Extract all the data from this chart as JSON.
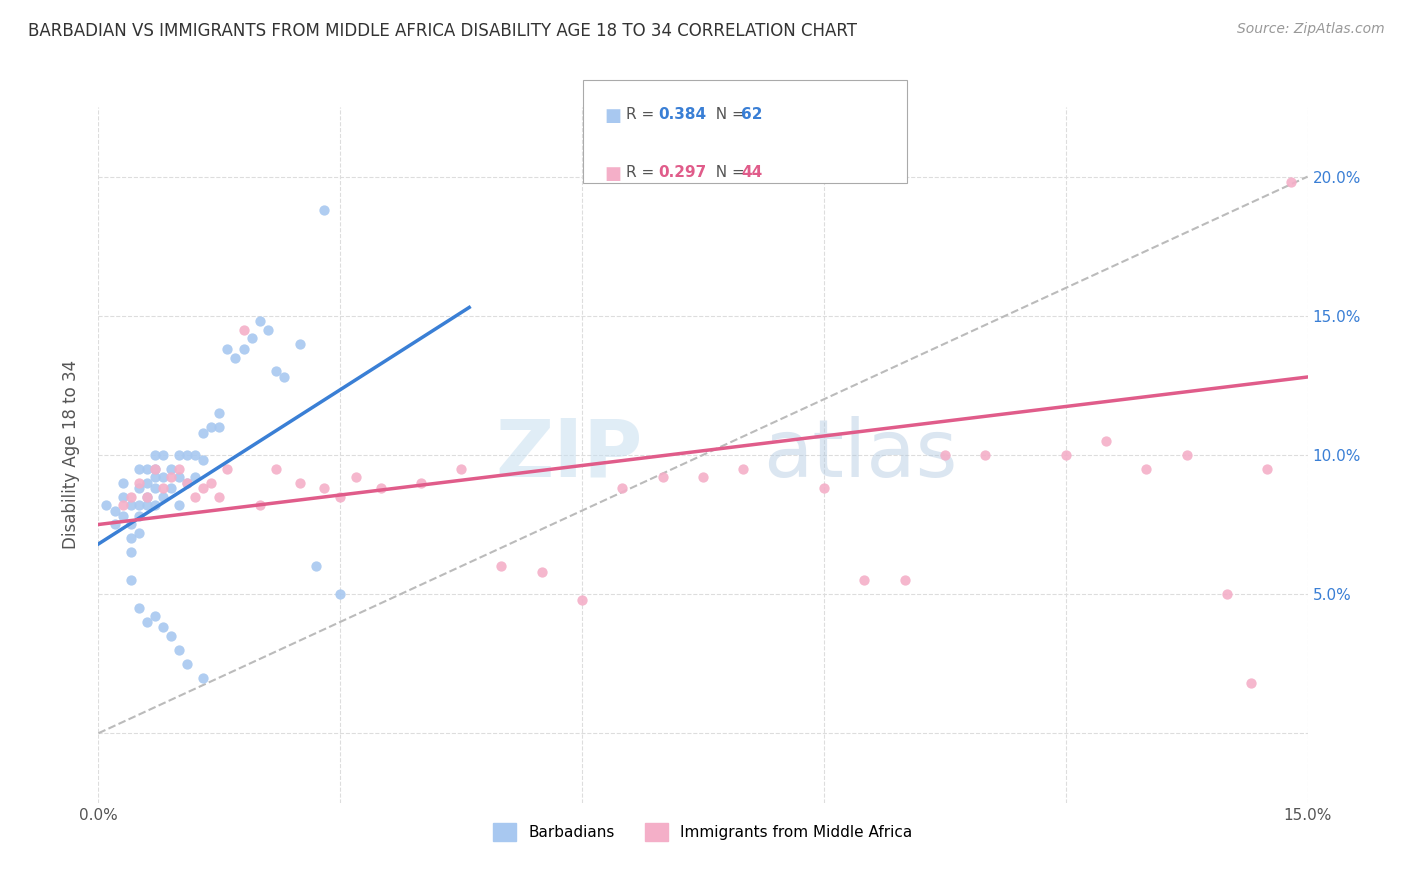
{
  "title": "BARBADIAN VS IMMIGRANTS FROM MIDDLE AFRICA DISABILITY AGE 18 TO 34 CORRELATION CHART",
  "source": "Source: ZipAtlas.com",
  "ylabel": "Disability Age 18 to 34",
  "xlim": [
    0.0,
    0.15
  ],
  "ylim": [
    -0.025,
    0.225
  ],
  "xtick_positions": [
    0.0,
    0.03,
    0.06,
    0.09,
    0.12,
    0.15
  ],
  "xticklabels": [
    "0.0%",
    "",
    "",
    "",
    "",
    "15.0%"
  ],
  "ytick_positions": [
    0.0,
    0.05,
    0.1,
    0.15,
    0.2
  ],
  "ytick_right_labels": [
    "",
    "5.0%",
    "10.0%",
    "15.0%",
    "20.0%"
  ],
  "r_blue": 0.384,
  "n_blue": 62,
  "r_pink": 0.297,
  "n_pink": 44,
  "color_blue": "#a8c8f0",
  "color_pink": "#f4afc8",
  "color_blue_line": "#3a7fd5",
  "color_pink_line": "#e05c8a",
  "color_blue_text": "#3a7fd5",
  "color_pink_text": "#e05c8a",
  "legend_label_blue": "Barbadians",
  "legend_label_pink": "Immigrants from Middle Africa",
  "blue_line_x0": 0.0,
  "blue_line_y0": 0.068,
  "blue_line_x1": 0.046,
  "blue_line_y1": 0.153,
  "pink_line_x0": 0.0,
  "pink_line_y0": 0.075,
  "pink_line_x1": 0.15,
  "pink_line_y1": 0.128,
  "blue_scatter_x": [
    0.001,
    0.002,
    0.002,
    0.003,
    0.003,
    0.003,
    0.004,
    0.004,
    0.004,
    0.004,
    0.005,
    0.005,
    0.005,
    0.005,
    0.005,
    0.006,
    0.006,
    0.006,
    0.006,
    0.007,
    0.007,
    0.007,
    0.007,
    0.007,
    0.008,
    0.008,
    0.008,
    0.009,
    0.009,
    0.01,
    0.01,
    0.01,
    0.011,
    0.011,
    0.012,
    0.012,
    0.013,
    0.013,
    0.014,
    0.015,
    0.015,
    0.016,
    0.017,
    0.018,
    0.019,
    0.02,
    0.021,
    0.022,
    0.023,
    0.025,
    0.027,
    0.03,
    0.004,
    0.005,
    0.006,
    0.007,
    0.008,
    0.009,
    0.01,
    0.011,
    0.013,
    0.028
  ],
  "blue_scatter_y": [
    0.082,
    0.08,
    0.075,
    0.085,
    0.078,
    0.09,
    0.082,
    0.075,
    0.07,
    0.065,
    0.088,
    0.082,
    0.095,
    0.078,
    0.072,
    0.09,
    0.085,
    0.082,
    0.095,
    0.092,
    0.1,
    0.088,
    0.082,
    0.095,
    0.1,
    0.092,
    0.085,
    0.095,
    0.088,
    0.1,
    0.092,
    0.082,
    0.1,
    0.09,
    0.1,
    0.092,
    0.108,
    0.098,
    0.11,
    0.115,
    0.11,
    0.138,
    0.135,
    0.138,
    0.142,
    0.148,
    0.145,
    0.13,
    0.128,
    0.14,
    0.06,
    0.05,
    0.055,
    0.045,
    0.04,
    0.042,
    0.038,
    0.035,
    0.03,
    0.025,
    0.02,
    0.188
  ],
  "pink_scatter_x": [
    0.003,
    0.004,
    0.005,
    0.006,
    0.007,
    0.008,
    0.009,
    0.01,
    0.011,
    0.012,
    0.013,
    0.014,
    0.015,
    0.016,
    0.018,
    0.02,
    0.022,
    0.025,
    0.028,
    0.03,
    0.032,
    0.035,
    0.04,
    0.045,
    0.05,
    0.055,
    0.06,
    0.065,
    0.07,
    0.075,
    0.08,
    0.09,
    0.095,
    0.1,
    0.105,
    0.11,
    0.12,
    0.125,
    0.13,
    0.135,
    0.14,
    0.143,
    0.145,
    0.148
  ],
  "pink_scatter_y": [
    0.082,
    0.085,
    0.09,
    0.085,
    0.095,
    0.088,
    0.092,
    0.095,
    0.09,
    0.085,
    0.088,
    0.09,
    0.085,
    0.095,
    0.145,
    0.082,
    0.095,
    0.09,
    0.088,
    0.085,
    0.092,
    0.088,
    0.09,
    0.095,
    0.06,
    0.058,
    0.048,
    0.088,
    0.092,
    0.092,
    0.095,
    0.088,
    0.055,
    0.055,
    0.1,
    0.1,
    0.1,
    0.105,
    0.095,
    0.1,
    0.05,
    0.018,
    0.095,
    0.198
  ]
}
